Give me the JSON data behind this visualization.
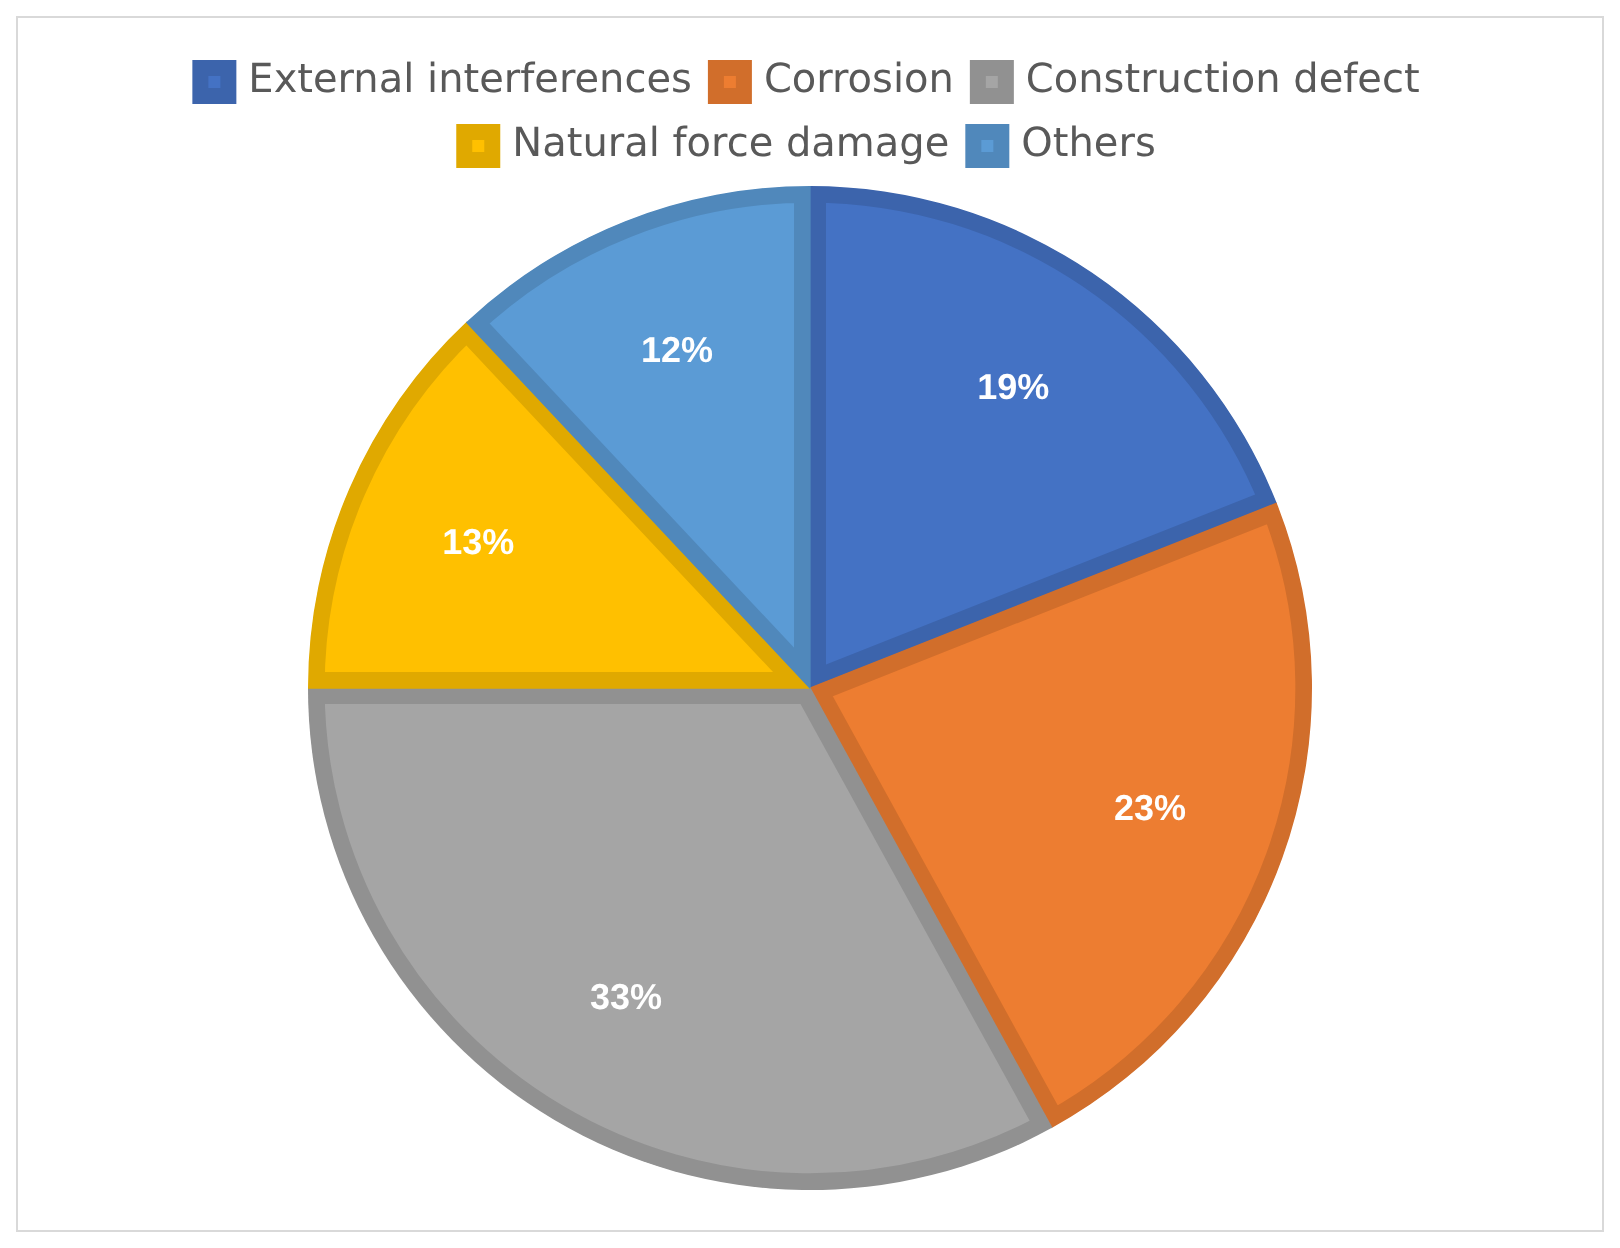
{
  "chart_data": {
    "type": "pie",
    "categories": [
      "External interferences",
      "Corrosion",
      "Construction defect",
      "Natural force damage",
      "Others"
    ],
    "values": [
      19,
      23,
      33,
      13,
      12
    ],
    "colors": [
      "#4472c4",
      "#ed7d31",
      "#a5a5a5",
      "#ffc000",
      "#5b9bd5"
    ],
    "value_labels": [
      "19%",
      "23%",
      "33%",
      "13%",
      "12%"
    ],
    "legend": "top"
  }
}
